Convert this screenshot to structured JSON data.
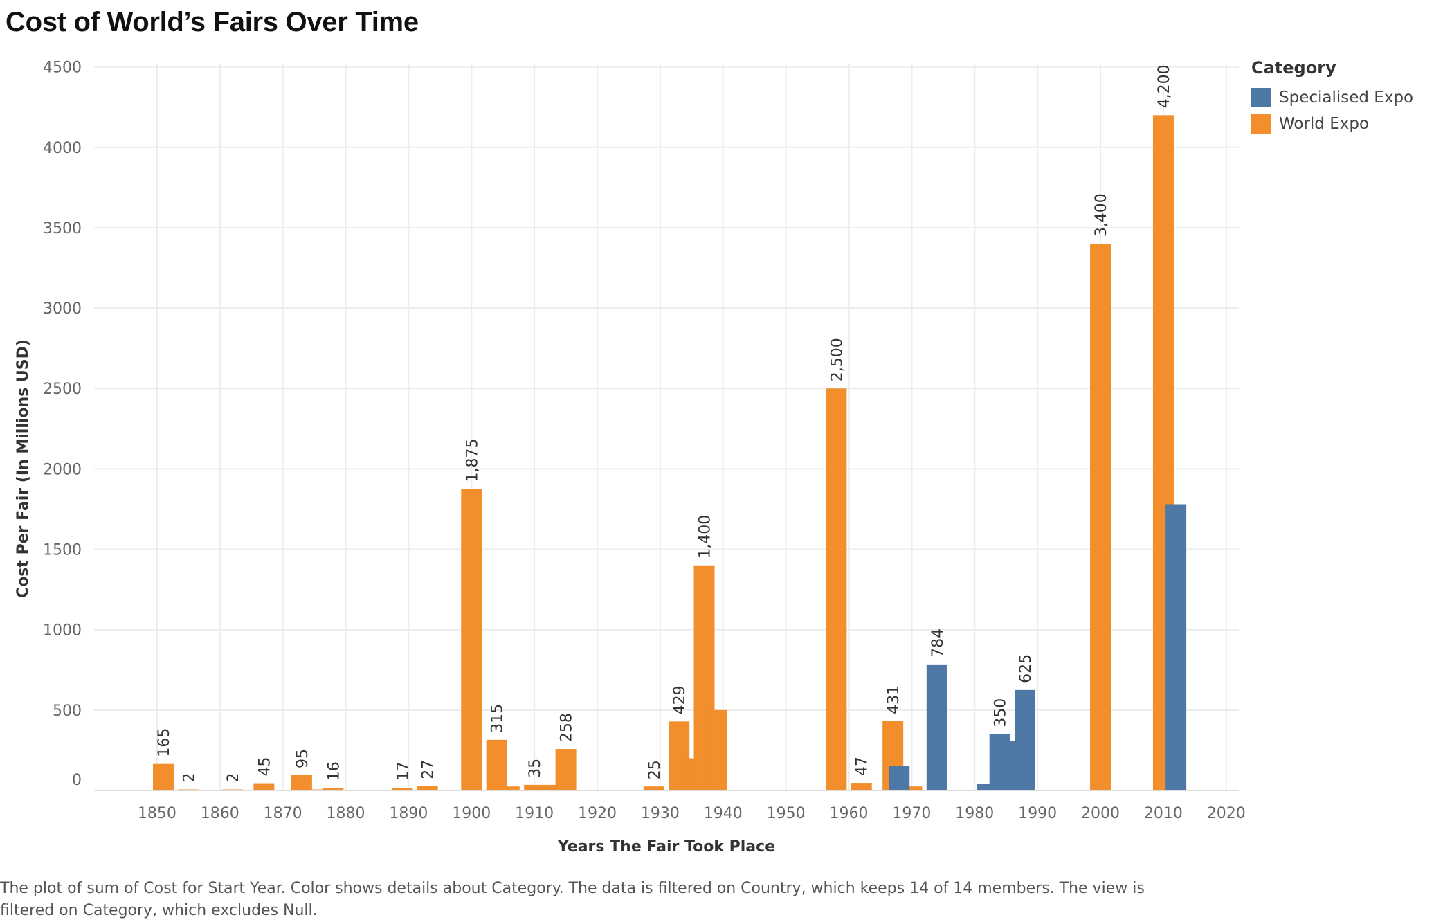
{
  "title": "Cost of World’s Fairs Over Time",
  "caption": "The plot of sum of Cost for Start Year.  Color shows details about Category. The data is filtered on Country, which keeps 14 of 14 members. The view is filtered on Category, which excludes Null.",
  "legend": {
    "title": "Category",
    "items": [
      {
        "label": "Specialised Expo",
        "color": "#4e79a7"
      },
      {
        "label": "World Expo",
        "color": "#f28e2b"
      }
    ]
  },
  "chart_data": {
    "type": "bar",
    "title": "Cost of World’s Fairs Over Time",
    "xlabel": "Years The Fair Took Place",
    "ylabel": "Cost Per Fair (In Millions USD)",
    "xlim": [
      1840,
      2022
    ],
    "ylim": [
      0,
      4500
    ],
    "x_ticks": [
      1850,
      1860,
      1870,
      1880,
      1890,
      1900,
      1910,
      1920,
      1930,
      1940,
      1950,
      1960,
      1970,
      1980,
      1990,
      2000,
      2010,
      2020
    ],
    "y_ticks": [
      0,
      500,
      1000,
      1500,
      2000,
      2500,
      3000,
      3500,
      4000,
      4500
    ],
    "grid": true,
    "legend_position": "right",
    "series": [
      {
        "name": "World Expo",
        "color": "#f28e2b",
        "points": [
          {
            "x": 1851,
            "y": 165,
            "label": "165"
          },
          {
            "x": 1855,
            "y": 2,
            "label": "2"
          },
          {
            "x": 1862,
            "y": 2,
            "label": "2"
          },
          {
            "x": 1867,
            "y": 45,
            "label": "45"
          },
          {
            "x": 1873,
            "y": 95,
            "label": "95"
          },
          {
            "x": 1876,
            "y": 5
          },
          {
            "x": 1878,
            "y": 16,
            "label": "16"
          },
          {
            "x": 1889,
            "y": 17,
            "label": "17"
          },
          {
            "x": 1893,
            "y": 27,
            "label": "27"
          },
          {
            "x": 1900,
            "y": 1875,
            "label": "1,875"
          },
          {
            "x": 1904,
            "y": 315,
            "label": "315"
          },
          {
            "x": 1906,
            "y": 25
          },
          {
            "x": 1910,
            "y": 35,
            "label": "35"
          },
          {
            "x": 1913,
            "y": 35
          },
          {
            "x": 1915,
            "y": 258,
            "label": "258"
          },
          {
            "x": 1929,
            "y": 25,
            "label": "25"
          },
          {
            "x": 1933,
            "y": 429,
            "label": "429"
          },
          {
            "x": 1935,
            "y": 200
          },
          {
            "x": 1937,
            "y": 1400,
            "label": "1,400"
          },
          {
            "x": 1939,
            "y": 500
          },
          {
            "x": 1958,
            "y": 2500,
            "label": "2,500"
          },
          {
            "x": 1962,
            "y": 47,
            "label": "47"
          },
          {
            "x": 1967,
            "y": 431,
            "label": "431"
          },
          {
            "x": 1970,
            "y": 25
          },
          {
            "x": 2000,
            "y": 3400,
            "label": "3,400"
          },
          {
            "x": 2010,
            "y": 4200,
            "label": "4,200"
          }
        ]
      },
      {
        "name": "Specialised Expo",
        "color": "#4e79a7",
        "points": [
          {
            "x": 1968,
            "y": 155
          },
          {
            "x": 1974,
            "y": 784,
            "label": "784"
          },
          {
            "x": 1982,
            "y": 40
          },
          {
            "x": 1984,
            "y": 350,
            "label": "350"
          },
          {
            "x": 1986,
            "y": 310
          },
          {
            "x": 1988,
            "y": 625,
            "label": "625"
          },
          {
            "x": 2012,
            "y": 1780
          }
        ]
      }
    ]
  }
}
